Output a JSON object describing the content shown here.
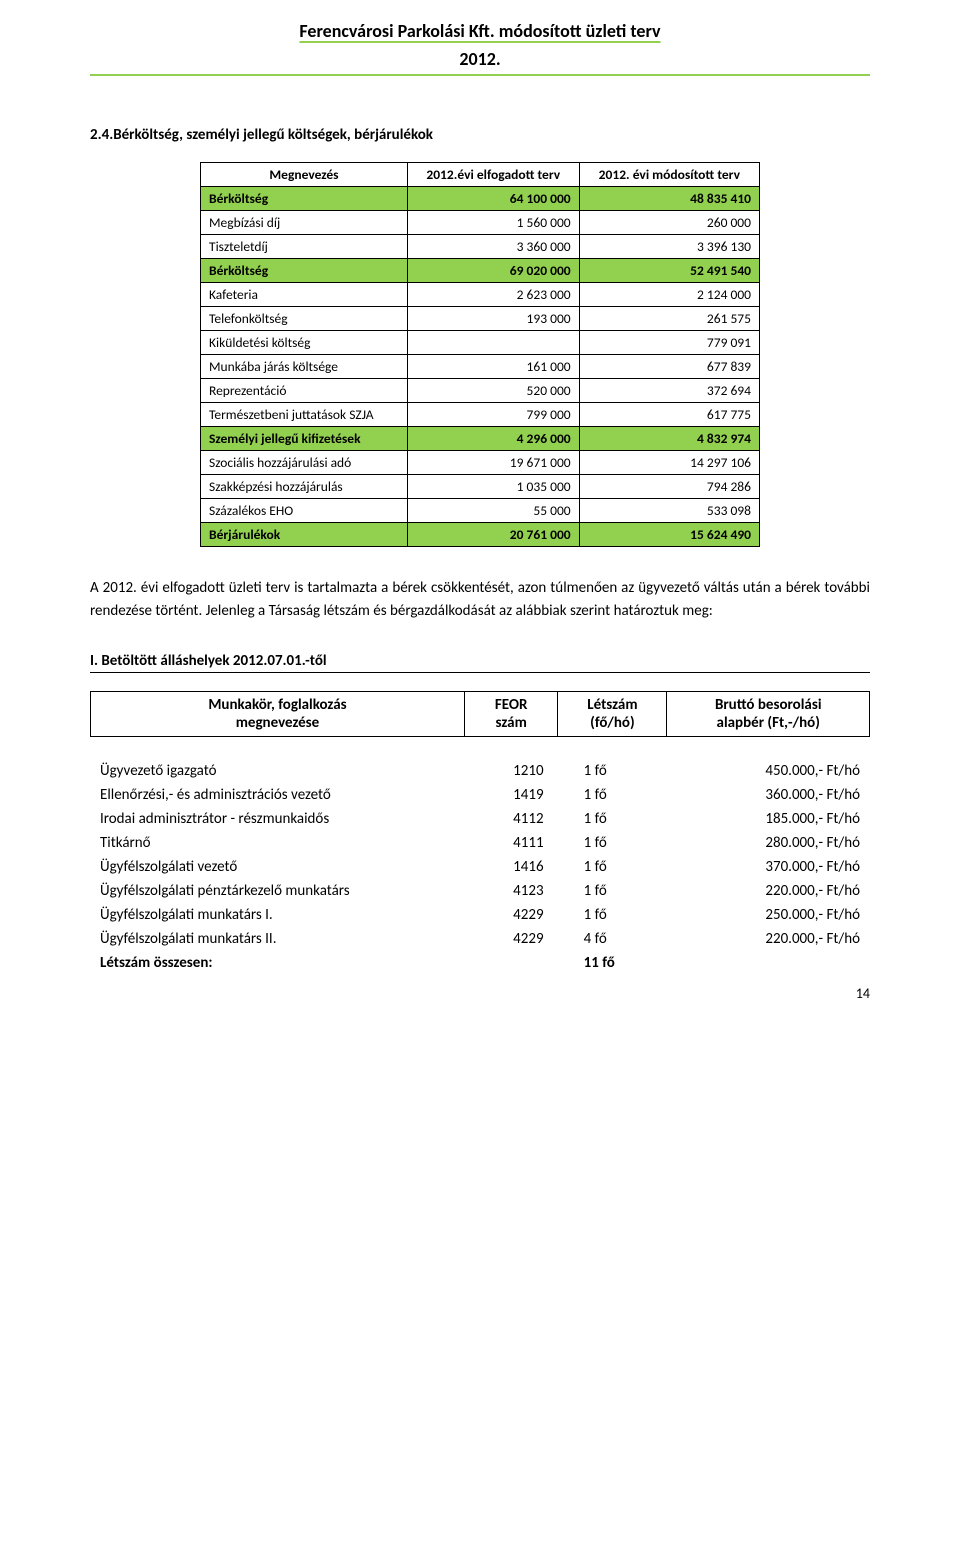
{
  "header": {
    "title": "Ferencvárosi Parkolási Kft. módosított üzleti terv",
    "year": "2012."
  },
  "section_heading": "2.4.Bérköltség, személyi jellegű költségek, bérjárulékok",
  "costs_table": {
    "col_name": "Megnevezés",
    "col_a": "2012.évi elfogadott terv",
    "col_b": "2012. évi módosított terv",
    "rows": [
      {
        "label": "Bérköltség",
        "a": "64 100 000",
        "b": "48 835 410",
        "hl": true
      },
      {
        "label": "Megbízási díj",
        "a": "1 560 000",
        "b": "260 000",
        "hl": false
      },
      {
        "label": "Tiszteletdíj",
        "a": "3 360 000",
        "b": "3 396 130",
        "hl": false
      },
      {
        "label": "Bérköltség",
        "a": "69 020 000",
        "b": "52 491 540",
        "hl": true
      },
      {
        "label": "Kafeteria",
        "a": "2 623 000",
        "b": "2 124 000",
        "hl": false
      },
      {
        "label": "Telefonköltség",
        "a": "193 000",
        "b": "261 575",
        "hl": false
      },
      {
        "label": "Kiküldetési költség",
        "a": "",
        "b": "779 091",
        "hl": false
      },
      {
        "label": "Munkába járás költsége",
        "a": "161 000",
        "b": "677 839",
        "hl": false
      },
      {
        "label": "Reprezentáció",
        "a": "520 000",
        "b": "372 694",
        "hl": false
      },
      {
        "label": "Természetbeni juttatások SZJA",
        "a": "799 000",
        "b": "617 775",
        "hl": false
      },
      {
        "label": "Személyi jellegű kifizetések",
        "a": "4 296 000",
        "b": "4 832 974",
        "hl": true
      },
      {
        "label": "Szociális hozzájárulási adó",
        "a": "19 671 000",
        "b": "14 297 106",
        "hl": false
      },
      {
        "label": "Szakképzési hozzájárulás",
        "a": "1 035 000",
        "b": "794 286",
        "hl": false
      },
      {
        "label": "Százalékos EHO",
        "a": "55 000",
        "b": "533 098",
        "hl": false
      },
      {
        "label": "Bérjárulékok",
        "a": "20 761 000",
        "b": "15 624 490",
        "hl": true
      }
    ],
    "highlight_color": "#92d050"
  },
  "body_paragraph": "A 2012. évi elfogadott üzleti terv is tartalmazta a bérek csökkentését, azon túlmenően az ügyvezető váltás után a bérek további rendezése történt. Jelenleg a Társaság létszám és bérgazdálkodását az alábbiak szerint határoztuk meg:",
  "subsection_heading": "I. Betöltött álláshelyek 2012.07.01.-től",
  "jobs_table": {
    "col_name_1": "Munkakör, foglalkozás",
    "col_name_2": "megnevezése",
    "col_feor_1": "FEOR",
    "col_feor_2": "szám",
    "col_count_1": "Létszám",
    "col_count_2": "(fő/hó)",
    "col_sal_1": "Bruttó besorolási",
    "col_sal_2": "alapbér (Ft,-/hó)",
    "rows": [
      {
        "name": "Ügyvezető igazgató",
        "feor": "1210",
        "count": "1 fő",
        "sal": "450.000,- Ft/hó"
      },
      {
        "name": "Ellenőrzési,- és adminisztrációs vezető",
        "feor": "1419",
        "count": "1 fő",
        "sal": "360.000,- Ft/hó"
      },
      {
        "name": "Irodai adminisztrátor - részmunkaidős",
        "feor": "4112",
        "count": "1 fő",
        "sal": "185.000,- Ft/hó"
      },
      {
        "name": "Titkárnő",
        "feor": "4111",
        "count": "1 fő",
        "sal": "280.000,- Ft/hó"
      },
      {
        "name": "Ügyfélszolgálati vezető",
        "feor": "1416",
        "count": "1 fő",
        "sal": "370.000,- Ft/hó"
      },
      {
        "name": "Ügyfélszolgálati pénztárkezelő munkatárs",
        "feor": "4123",
        "count": "1 fő",
        "sal": "220.000,- Ft/hó"
      },
      {
        "name": "Ügyfélszolgálati munkatárs I.",
        "feor": "4229",
        "count": "1 fő",
        "sal": "250.000,- Ft/hó"
      },
      {
        "name": "Ügyfélszolgálati munkatárs II.",
        "feor": "4229",
        "count": "4 fő",
        "sal": "220.000,- Ft/hó"
      }
    ],
    "total_label": "Létszám összesen:",
    "total_count": "11 fő"
  },
  "page_number": "14"
}
